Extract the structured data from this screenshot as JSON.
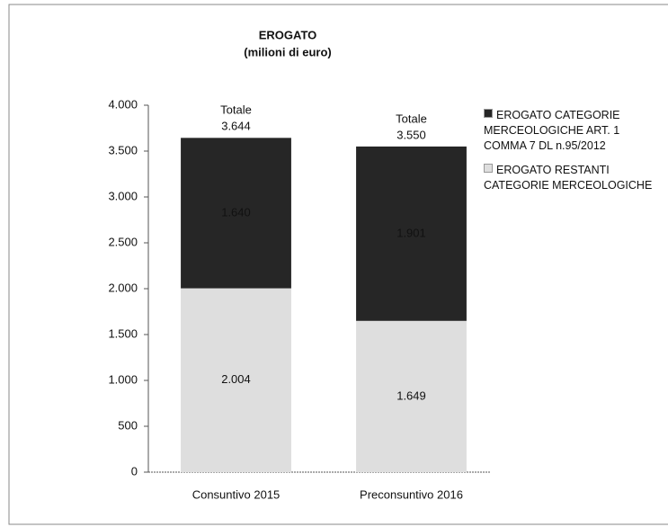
{
  "chart_data": {
    "type": "stacked_bar",
    "title": "EROGATO",
    "subtitle": "(milioni di euro)",
    "categories": [
      "Consuntivo 2015",
      "Preconsuntivo 2016"
    ],
    "series": [
      {
        "name": "EROGATO RESTANTI CATEGORIE MERCEOLOGICHE",
        "color": "#dedede",
        "values": [
          2004,
          1649
        ],
        "value_labels": [
          "2.004",
          "1.649"
        ]
      },
      {
        "name": "EROGATO CATEGORIE MERCEOLOGICHE ART. 1 COMMA 7 DL n.95/2012",
        "color": "#262626",
        "values": [
          1640,
          1901
        ],
        "value_labels": [
          "1.640",
          "1.901"
        ]
      }
    ],
    "totals": {
      "label": "Totale",
      "values": [
        3644,
        3550
      ],
      "value_labels": [
        "3.644",
        "3.550"
      ]
    },
    "ylim": [
      0,
      4000
    ],
    "yticks": [
      0,
      500,
      {
        "value": 1000,
        "label": "1.000"
      },
      {
        "value": 1500,
        "label": "1.500"
      },
      {
        "value": 2000,
        "label": "2.000"
      },
      {
        "value": 2500,
        "label": "2.500"
      },
      {
        "value": 3000,
        "label": "3.000"
      },
      {
        "value": 3500,
        "label": "3.500"
      },
      {
        "value": 4000,
        "label": "4.000"
      }
    ],
    "grid": false,
    "legend": "right"
  }
}
